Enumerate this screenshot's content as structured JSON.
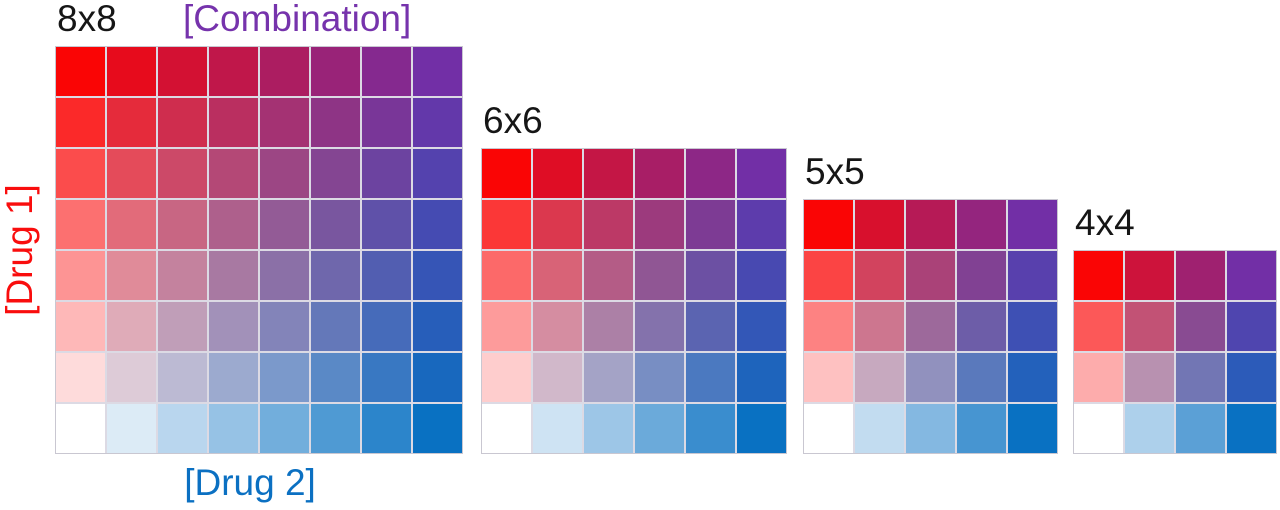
{
  "figure": {
    "background": "#ffffff",
    "axis_labels": {
      "drug1": {
        "text": "[Drug 1]",
        "color": "#f90d0d"
      },
      "drug2": {
        "text": "[Drug 2]",
        "color": "#0b70c2"
      },
      "combination": {
        "text": "[Combination]",
        "color": "#7633ac"
      }
    },
    "title_color": "#161616",
    "color_model": {
      "type": "bilinear-corner-interpolation",
      "corners": {
        "top_left_drug1_max": "#fa0505",
        "top_right_combination_max": "#722fa6",
        "bottom_left_untreated": "#ffffff",
        "bottom_right_drug2_max": "#0971c2"
      },
      "gridline_color": "#dcdae4",
      "border_color": "#c9c7d1"
    },
    "grids": [
      {
        "title": "8x8",
        "rows": 8,
        "cols": 8
      },
      {
        "title": "6x6",
        "rows": 6,
        "cols": 6
      },
      {
        "title": "5x5",
        "rows": 5,
        "cols": 5
      },
      {
        "title": "4x4",
        "rows": 4,
        "cols": 4
      }
    ]
  }
}
